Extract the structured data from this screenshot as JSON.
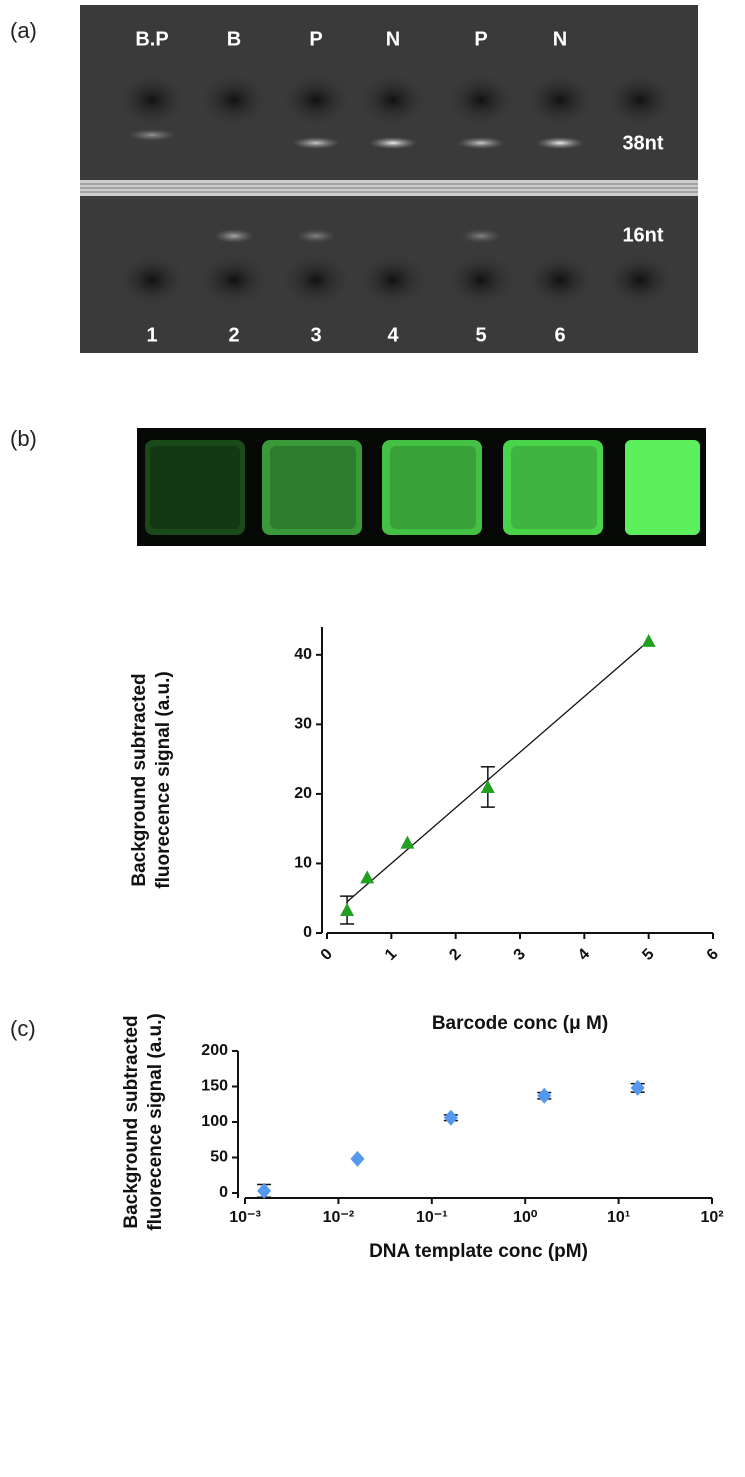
{
  "panel_labels": [
    "(a)",
    "(b)",
    "(c)"
  ],
  "gel": {
    "lane_labels": [
      "B.P",
      "B",
      "P",
      "N",
      "P",
      "N"
    ],
    "lane_numbers": [
      "1",
      "2",
      "3",
      "4",
      "5",
      "6"
    ],
    "band_labels": [
      "38nt",
      "16nt"
    ]
  },
  "chart_data": [
    {
      "type": "scatter",
      "xlabel": "Barcode conc (μ M)",
      "ylabel": [
        "Background subtracted",
        "fluorecence signal (a.u.)"
      ],
      "x": [
        0.3125,
        0.625,
        1.25,
        2.5,
        5
      ],
      "series": [
        {
          "name": "signal",
          "color": "#22a022",
          "marker": "triangle",
          "values": [
            3.3,
            8,
            13,
            21,
            42
          ],
          "errors": [
            2,
            null,
            null,
            2.9,
            null
          ]
        }
      ],
      "fit": {
        "x": [
          0.3125,
          5
        ],
        "y": [
          4.5,
          42
        ]
      },
      "xlim": [
        0,
        6
      ],
      "xticks": [
        0,
        1,
        2,
        3,
        4,
        5,
        6
      ],
      "ylim": [
        0,
        44
      ],
      "yticks": [
        0,
        10,
        20,
        30,
        40
      ],
      "log_x": false
    },
    {
      "type": "scatter",
      "xlabel": "DNA template conc (pM)",
      "ylabel": [
        "Background subtracted",
        "fluorecence signal (a.u.)"
      ],
      "x": [
        0.0016,
        0.016,
        0.16,
        1.6,
        16
      ],
      "series": [
        {
          "name": "signal",
          "color": "#5599ee",
          "marker": "diamond",
          "values": [
            3,
            48,
            106,
            137,
            148
          ],
          "errors": [
            9,
            null,
            4,
            4.5,
            6
          ]
        }
      ],
      "xlim": [
        0.001,
        100
      ],
      "xticks": [
        {
          "value": 0.001,
          "label": "10⁻³"
        },
        {
          "value": 0.01,
          "label": "10⁻²"
        },
        {
          "value": 0.1,
          "label": "10⁻¹"
        },
        {
          "value": 1,
          "label": "10⁰"
        },
        {
          "value": 10,
          "label": "10¹"
        },
        {
          "value": 100,
          "label": "10²"
        }
      ],
      "ylim": [
        0,
        200
      ],
      "yticks": [
        0,
        50,
        100,
        150,
        200
      ],
      "log_x": true
    }
  ]
}
